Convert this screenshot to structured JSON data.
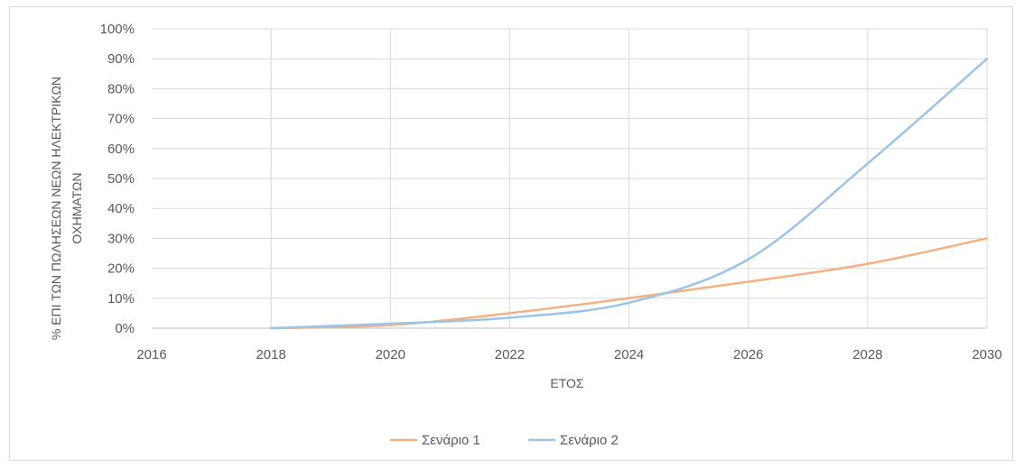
{
  "chart_data": {
    "type": "line",
    "title": "",
    "xlabel": "ΕΤΟΣ",
    "ylabel_line1": "% ΕΠΙ ΤΩΝ ΠΩΛΗΣΕΩΝ ΝΕΩΝ ΗΛΕΚΤΡΙΚΩΝ",
    "ylabel_line2": "ΟΧΗΜΑΤΩΝ",
    "xlim": [
      2016,
      2030
    ],
    "ylim": [
      0,
      1
    ],
    "x_ticks": [
      2016,
      2018,
      2020,
      2022,
      2024,
      2026,
      2028,
      2030
    ],
    "y_ticks": [
      0,
      0.1,
      0.2,
      0.3,
      0.4,
      0.5,
      0.6,
      0.7,
      0.8,
      0.9,
      1.0
    ],
    "y_tick_labels": [
      "0%",
      "10%",
      "20%",
      "30%",
      "40%",
      "50%",
      "60%",
      "70%",
      "80%",
      "90%",
      "100%"
    ],
    "grid": true,
    "legend_position": "bottom",
    "series": [
      {
        "name": "Σενάριο 1",
        "color": "#f4b183",
        "x": [
          2018,
          2020,
          2022,
          2024,
          2026,
          2028,
          2030
        ],
        "y": [
          0.0,
          0.01,
          0.05,
          0.1,
          0.155,
          0.215,
          0.3
        ]
      },
      {
        "name": "Σενάριο 2",
        "color": "#9dc3e6",
        "x": [
          2018,
          2020,
          2022,
          2024,
          2026,
          2028,
          2030
        ],
        "y": [
          0.0,
          0.015,
          0.035,
          0.085,
          0.23,
          0.55,
          0.9
        ]
      }
    ]
  }
}
